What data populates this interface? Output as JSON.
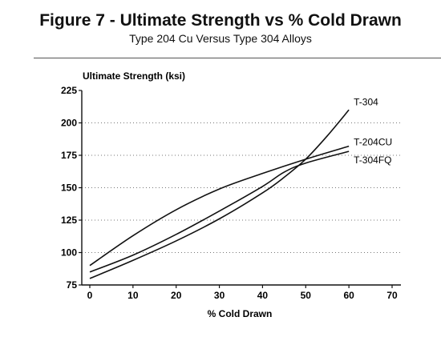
{
  "figure": {
    "title": "Figure 7 - Ultimate Strength vs % Cold Drawn",
    "subtitle": "Type 204 Cu Versus Type 304 Alloys"
  },
  "chart_data": {
    "type": "line",
    "title": "Figure 7 - Ultimate Strength vs % Cold Drawn",
    "subtitle": "Type 204 Cu Versus Type 304 Alloys",
    "xlabel": "% Cold Drawn",
    "ylabel": "Ultimate Strength (ksi)",
    "xlim": [
      0,
      70
    ],
    "ylim": [
      75,
      225
    ],
    "x_ticks": [
      0,
      10,
      20,
      30,
      40,
      50,
      60,
      70
    ],
    "y_ticks": [
      75,
      100,
      125,
      150,
      175,
      200,
      225
    ],
    "grid": "horizontal dotted",
    "series": [
      {
        "name": "T-304",
        "x": [
          0,
          10,
          20,
          30,
          40,
          45,
          50,
          55,
          60
        ],
        "y": [
          80,
          94,
          109,
          126,
          146,
          158,
          172,
          190,
          210
        ]
      },
      {
        "name": "T-204CU",
        "x": [
          0,
          10,
          20,
          30,
          40,
          50,
          60
        ],
        "y": [
          90,
          113,
          133,
          149,
          161,
          172,
          182
        ]
      },
      {
        "name": "T-304FQ",
        "x": [
          0,
          10,
          20,
          30,
          40,
          45,
          50,
          60
        ],
        "y": [
          85,
          98,
          114,
          132,
          151,
          162,
          169,
          178
        ]
      }
    ]
  }
}
